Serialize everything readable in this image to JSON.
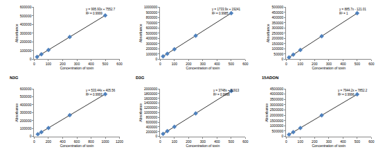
{
  "chart_data": [
    {
      "type": "scatter",
      "x": [
        20,
        50,
        100,
        250,
        500
      ],
      "values": [
        27471,
        57349,
        107146,
        256535,
        505518
      ],
      "equation": "y = 995.93x + 7552.7",
      "r2": "R² = 0.9999",
      "trendline": {
        "slope": 995.93,
        "intercept": 7552.7
      },
      "x_label": "Concentration of toxin",
      "y_label": "Absorbance",
      "xlim": [
        0,
        600
      ],
      "xticks": [
        0,
        100,
        200,
        300,
        400,
        500,
        600
      ],
      "ylim": [
        0,
        600000
      ],
      "yticks": [
        0,
        100000,
        200000,
        300000,
        400000,
        500000,
        600000
      ],
      "color": "#4f81bd",
      "marker": "diamond",
      "grid": false
    },
    {
      "type": "scatter",
      "x": [
        20,
        50,
        100,
        250,
        500
      ],
      "values": [
        53919,
        105936,
        192631,
        452716,
        886191
      ],
      "equation": "y = 1733.9x + 19241",
      "r2": "R² = 0.9985",
      "trendline": {
        "slope": 1733.9,
        "intercept": 19241
      },
      "x_label": "Concentration of toxin",
      "y_label": "Absorbance",
      "xlim": [
        0,
        600
      ],
      "xticks": [
        0,
        100,
        200,
        300,
        400,
        500,
        600
      ],
      "ylim": [
        0,
        1000000
      ],
      "yticks": [
        0,
        100000,
        200000,
        300000,
        400000,
        500000,
        600000,
        700000,
        800000,
        900000,
        1000000
      ],
      "color": "#4f81bd",
      "marker": "diamond",
      "grid": false
    },
    {
      "type": "scatter",
      "x": [
        20,
        50,
        100,
        250,
        500
      ],
      "values": [
        17593,
        44164,
        88449,
        221304,
        442729
      ],
      "equation": "y = 885.7x - 121.01",
      "r2": "R² = 1",
      "trendline": {
        "slope": 885.7,
        "intercept": -121.01
      },
      "x_label": "Concentration of toxin",
      "y_label": "Absorbance",
      "xlim": [
        0,
        600
      ],
      "xticks": [
        0,
        100,
        200,
        300,
        400,
        500,
        600
      ],
      "ylim": [
        0,
        500000
      ],
      "yticks": [
        0,
        50000,
        100000,
        150000,
        200000,
        250000,
        300000,
        350000,
        400000,
        450000,
        500000
      ],
      "color": "#4f81bd",
      "marker": "diamond",
      "grid": false
    },
    {
      "type": "scatter",
      "title": "N3G",
      "x": [
        50,
        100,
        200,
        500,
        1000
      ],
      "values": [
        27078,
        53750,
        107094,
        267126,
        533845
      ],
      "equation": "y = 533.44x + 405.56",
      "r2": "R² = 0.9993",
      "trendline": {
        "slope": 533.44,
        "intercept": 405.56
      },
      "x_label": "Concentration of toxin",
      "y_label": "Absorbance",
      "xlim": [
        0,
        1200
      ],
      "xticks": [
        0,
        200,
        400,
        600,
        800,
        1000,
        1200
      ],
      "ylim": [
        0,
        600000
      ],
      "yticks": [
        0,
        100000,
        200000,
        300000,
        400000,
        500000,
        600000
      ],
      "color": "#4f81bd",
      "marker": "diamond",
      "grid": false
    },
    {
      "type": "scatter",
      "title": "D3G",
      "x": [
        20,
        50,
        100,
        250,
        500
      ],
      "values": [
        106873,
        219313,
        406713,
        968913,
        1905913
      ],
      "equation": "y = 3748x + 31913",
      "r2": "R² = 0.9998",
      "trendline": {
        "slope": 3748,
        "intercept": 31913
      },
      "x_label": "Concentration of toxin",
      "y_label": "Absorbance",
      "xlim": [
        0,
        600
      ],
      "xticks": [
        0,
        100,
        200,
        300,
        400,
        500,
        600
      ],
      "ylim": [
        0,
        2000000
      ],
      "yticks": [
        0,
        200000,
        400000,
        600000,
        800000,
        1000000,
        1200000,
        1400000,
        1600000,
        1800000,
        2000000
      ],
      "color": "#4f81bd",
      "marker": "diamond",
      "grid": false
    },
    {
      "type": "scatter",
      "title": "15ADON",
      "x": [
        20,
        50,
        100,
        250,
        500
      ],
      "values": [
        166736,
        405062,
        802272,
        1993902,
        3979952
      ],
      "equation": "y = 7944.2x + 7852.2",
      "r2": "R² = 0.9996",
      "trendline": {
        "slope": 7944.2,
        "intercept": 7852.2
      },
      "x_label": "Concentration of toxin",
      "y_label": "Absorbance",
      "xlim": [
        0,
        600
      ],
      "xticks": [
        0,
        100,
        200,
        300,
        400,
        500,
        600
      ],
      "ylim": [
        0,
        4500000
      ],
      "yticks": [
        0,
        500000,
        1000000,
        1500000,
        2000000,
        2500000,
        3000000,
        3500000,
        4000000,
        4500000
      ],
      "color": "#4f81bd",
      "marker": "diamond",
      "grid": false
    }
  ]
}
